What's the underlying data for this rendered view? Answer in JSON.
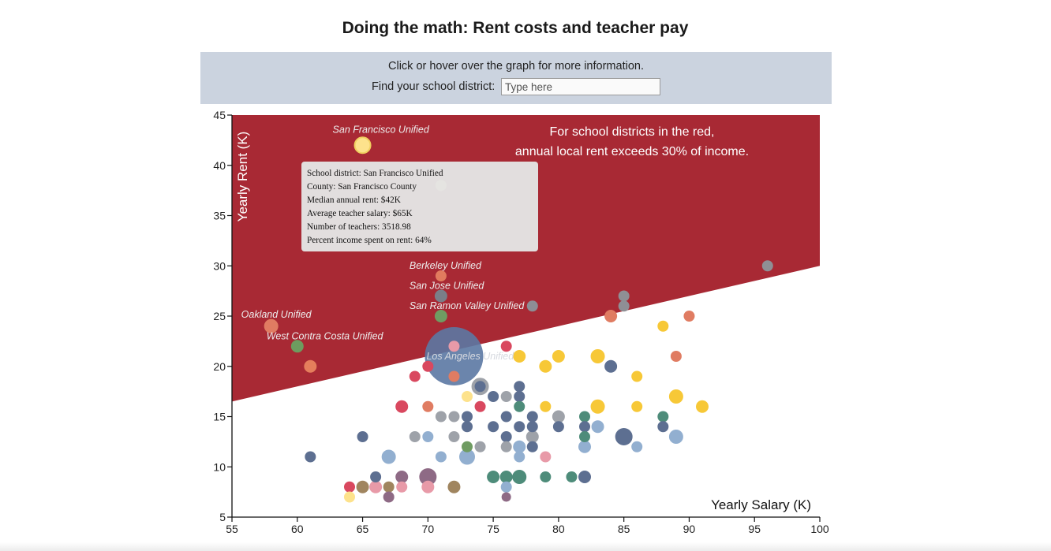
{
  "header": {
    "title": "Doing the math: Rent costs and teacher pay"
  },
  "controls": {
    "instructions": "Click or hover over the graph for more information.",
    "find_label": "Find your school district:",
    "search_placeholder": "Type here"
  },
  "tooltip": {
    "district": "School district: San Francisco Unified",
    "county": "County: San Francisco County",
    "rent": "Median annual rent: $42K",
    "salary": "Average teacher salary: $65K",
    "teachers": "Number of teachers: 3518.98",
    "percent": "Percent income spent on rent: 64%"
  },
  "colors": {
    "danger_zone": "#a82934",
    "accent_text": "#ffffff",
    "search_bar_bg": "#cbd3df"
  },
  "chart_data": {
    "type": "scatter",
    "title": "Doing the math: Rent costs and teacher pay",
    "xlabel": "Yearly Salary (K)",
    "ylabel": "Yearly Rent (K)",
    "xlim": [
      55,
      100
    ],
    "ylim": [
      5,
      45
    ],
    "xticks": [
      55,
      60,
      65,
      70,
      75,
      80,
      85,
      90,
      95,
      100
    ],
    "yticks": [
      5,
      10,
      15,
      20,
      25,
      30,
      35,
      40,
      45
    ],
    "threshold": {
      "description": "annual rent = 30% of income",
      "fraction": 0.3
    },
    "annotation": [
      "For school districts in the red,",
      "annual local rent exceeds 30% of income."
    ],
    "labeled_districts": [
      {
        "name": "San Francisco Unified",
        "x": 65,
        "y": 42
      },
      {
        "name": "Berkeley Unified",
        "x": 71,
        "y": 29
      },
      {
        "name": "San Jose Unified",
        "x": 71,
        "y": 27
      },
      {
        "name": "San Ramon Valley Unified",
        "x": 71,
        "y": 25
      },
      {
        "name": "Oakland Unified",
        "x": 58,
        "y": 24
      },
      {
        "name": "West Contra Costa Unified",
        "x": 60,
        "y": 22
      },
      {
        "name": "Los Angeles Unified",
        "x": 72,
        "y": 21
      }
    ],
    "points": [
      {
        "x": 72,
        "y": 21,
        "r": 37,
        "c": "#5b78a3",
        "o": 0.9
      },
      {
        "x": 65,
        "y": 42,
        "r": 10,
        "c": "#fde28c",
        "s": "#f0d060"
      },
      {
        "x": 71,
        "y": 38,
        "r": 7,
        "c": "#fde28c"
      },
      {
        "x": 71,
        "y": 29,
        "r": 7,
        "c": "#e17b5e"
      },
      {
        "x": 71,
        "y": 27,
        "r": 8,
        "c": "#7a7e88"
      },
      {
        "x": 71,
        "y": 25,
        "r": 8,
        "c": "#6f9c62"
      },
      {
        "x": 58,
        "y": 24,
        "r": 9,
        "c": "#e07c62"
      },
      {
        "x": 60,
        "y": 22,
        "r": 8,
        "c": "#6d9c5f"
      },
      {
        "x": 61,
        "y": 20,
        "r": 8,
        "c": "#e57e5c"
      },
      {
        "x": 72,
        "y": 22,
        "r": 7,
        "c": "#e89aa8"
      },
      {
        "x": 72,
        "y": 19,
        "r": 7,
        "c": "#e07c62"
      },
      {
        "x": 96,
        "y": 30,
        "r": 7,
        "c": "#8f8f95"
      },
      {
        "x": 78,
        "y": 26,
        "r": 7,
        "c": "#8d8e95"
      },
      {
        "x": 85,
        "y": 27,
        "r": 7,
        "c": "#8f8f95"
      },
      {
        "x": 85,
        "y": 26,
        "r": 7,
        "c": "#8f8f95"
      },
      {
        "x": 84,
        "y": 25,
        "r": 8,
        "c": "#e07c62"
      },
      {
        "x": 90,
        "y": 25,
        "r": 7,
        "c": "#e07c62"
      },
      {
        "x": 88,
        "y": 24,
        "r": 7,
        "c": "#f7c837"
      },
      {
        "x": 76,
        "y": 22,
        "r": 7,
        "c": "#d9485f"
      },
      {
        "x": 77,
        "y": 21,
        "r": 8,
        "c": "#f7c837"
      },
      {
        "x": 80,
        "y": 21,
        "r": 8,
        "c": "#f7c837"
      },
      {
        "x": 83,
        "y": 21,
        "r": 9,
        "c": "#f7c837"
      },
      {
        "x": 89,
        "y": 21,
        "r": 7,
        "c": "#e07c62"
      },
      {
        "x": 79,
        "y": 20,
        "r": 8,
        "c": "#f7c837"
      },
      {
        "x": 84,
        "y": 20,
        "r": 8,
        "c": "#5d6f91"
      },
      {
        "x": 70,
        "y": 20,
        "r": 7,
        "c": "#d9485f"
      },
      {
        "x": 69,
        "y": 19,
        "r": 7,
        "c": "#d9485f"
      },
      {
        "x": 86,
        "y": 19,
        "r": 7,
        "c": "#f7c837"
      },
      {
        "x": 74,
        "y": 18,
        "r": 12,
        "c": "#9ea2a9",
        "s": "#ffffff"
      },
      {
        "x": 74,
        "y": 18,
        "r": 7,
        "c": "#5d6f91"
      },
      {
        "x": 77,
        "y": 18,
        "r": 7,
        "c": "#5d6f91"
      },
      {
        "x": 73,
        "y": 17,
        "r": 7,
        "c": "#fde28c"
      },
      {
        "x": 75,
        "y": 17,
        "r": 7,
        "c": "#5d6f91"
      },
      {
        "x": 76,
        "y": 17,
        "r": 7,
        "c": "#9ea2a9"
      },
      {
        "x": 77,
        "y": 17,
        "r": 7,
        "c": "#5d6f91"
      },
      {
        "x": 89,
        "y": 17,
        "r": 9,
        "c": "#f7c837"
      },
      {
        "x": 68,
        "y": 16,
        "r": 8,
        "c": "#d9485f"
      },
      {
        "x": 70,
        "y": 16,
        "r": 7,
        "c": "#e07c62"
      },
      {
        "x": 74,
        "y": 16,
        "r": 7,
        "c": "#d9485f"
      },
      {
        "x": 77,
        "y": 16,
        "r": 7,
        "c": "#4e8c7a"
      },
      {
        "x": 79,
        "y": 16,
        "r": 7,
        "c": "#f7c837"
      },
      {
        "x": 83,
        "y": 16,
        "r": 9,
        "c": "#f7c837"
      },
      {
        "x": 86,
        "y": 16,
        "r": 7,
        "c": "#f7c837"
      },
      {
        "x": 91,
        "y": 16,
        "r": 8,
        "c": "#f7c837"
      },
      {
        "x": 71,
        "y": 15,
        "r": 7,
        "c": "#9ea2a9"
      },
      {
        "x": 72,
        "y": 15,
        "r": 7,
        "c": "#9ea2a9"
      },
      {
        "x": 73,
        "y": 15,
        "r": 7,
        "c": "#5d6f91"
      },
      {
        "x": 76,
        "y": 15,
        "r": 7,
        "c": "#5d6f91"
      },
      {
        "x": 78,
        "y": 15,
        "r": 7,
        "c": "#5d6f91"
      },
      {
        "x": 80,
        "y": 15,
        "r": 8,
        "c": "#9ea2a9"
      },
      {
        "x": 82,
        "y": 15,
        "r": 7,
        "c": "#4e8c7a"
      },
      {
        "x": 88,
        "y": 15,
        "r": 7,
        "c": "#4e8c7a"
      },
      {
        "x": 73,
        "y": 14,
        "r": 7,
        "c": "#5d6f91"
      },
      {
        "x": 75,
        "y": 14,
        "r": 7,
        "c": "#5d6f91"
      },
      {
        "x": 77,
        "y": 14,
        "r": 7,
        "c": "#5d6f91"
      },
      {
        "x": 78,
        "y": 14,
        "r": 7,
        "c": "#5d6f91"
      },
      {
        "x": 80,
        "y": 14,
        "r": 7,
        "c": "#5d6f91"
      },
      {
        "x": 82,
        "y": 14,
        "r": 7,
        "c": "#5d6f91"
      },
      {
        "x": 83,
        "y": 14,
        "r": 8,
        "c": "#92afd0"
      },
      {
        "x": 88,
        "y": 14,
        "r": 7,
        "c": "#5d6f91"
      },
      {
        "x": 65,
        "y": 13,
        "r": 7,
        "c": "#5d6f91"
      },
      {
        "x": 69,
        "y": 13,
        "r": 7,
        "c": "#9ea2a9"
      },
      {
        "x": 70,
        "y": 13,
        "r": 7,
        "c": "#92afd0"
      },
      {
        "x": 72,
        "y": 13,
        "r": 7,
        "c": "#9ea2a9"
      },
      {
        "x": 76,
        "y": 13,
        "r": 7,
        "c": "#5d6f91"
      },
      {
        "x": 78,
        "y": 13,
        "r": 8,
        "c": "#9ea2a9"
      },
      {
        "x": 82,
        "y": 13,
        "r": 7,
        "c": "#4e8c7a"
      },
      {
        "x": 85,
        "y": 13,
        "r": 11,
        "c": "#5d6f91"
      },
      {
        "x": 89,
        "y": 13,
        "r": 9,
        "c": "#92afd0"
      },
      {
        "x": 73,
        "y": 12,
        "r": 7,
        "c": "#6f9c62"
      },
      {
        "x": 74,
        "y": 12,
        "r": 7,
        "c": "#9ea2a9"
      },
      {
        "x": 76,
        "y": 12,
        "r": 7,
        "c": "#9ea2a9"
      },
      {
        "x": 77,
        "y": 12,
        "r": 8,
        "c": "#92afd0"
      },
      {
        "x": 78,
        "y": 12,
        "r": 7,
        "c": "#5d6f91"
      },
      {
        "x": 82,
        "y": 12,
        "r": 8,
        "c": "#92afd0"
      },
      {
        "x": 86,
        "y": 12,
        "r": 7,
        "c": "#92afd0"
      },
      {
        "x": 61,
        "y": 11,
        "r": 7,
        "c": "#5d6f91"
      },
      {
        "x": 67,
        "y": 11,
        "r": 9,
        "c": "#92afd0"
      },
      {
        "x": 71,
        "y": 11,
        "r": 7,
        "c": "#92afd0"
      },
      {
        "x": 73,
        "y": 11,
        "r": 10,
        "c": "#92afd0"
      },
      {
        "x": 77,
        "y": 11,
        "r": 7,
        "c": "#92afd0"
      },
      {
        "x": 79,
        "y": 11,
        "r": 7,
        "c": "#e89aa8"
      },
      {
        "x": 66,
        "y": 9,
        "r": 7,
        "c": "#5d6f91"
      },
      {
        "x": 68,
        "y": 9,
        "r": 8,
        "c": "#8e6a85"
      },
      {
        "x": 70,
        "y": 9,
        "r": 11,
        "c": "#8e6a85"
      },
      {
        "x": 75,
        "y": 9,
        "r": 8,
        "c": "#4e8c7a"
      },
      {
        "x": 76,
        "y": 9,
        "r": 8,
        "c": "#4e8c7a"
      },
      {
        "x": 77,
        "y": 9,
        "r": 9,
        "c": "#4e8c7a"
      },
      {
        "x": 79,
        "y": 9,
        "r": 7,
        "c": "#4e8c7a"
      },
      {
        "x": 81,
        "y": 9,
        "r": 7,
        "c": "#4e8c7a"
      },
      {
        "x": 82,
        "y": 9,
        "r": 8,
        "c": "#5d6f91"
      },
      {
        "x": 64,
        "y": 8,
        "r": 7,
        "c": "#d9485f"
      },
      {
        "x": 65,
        "y": 8,
        "r": 8,
        "c": "#a0855f"
      },
      {
        "x": 66,
        "y": 8,
        "r": 8,
        "c": "#e89aa8"
      },
      {
        "x": 67,
        "y": 8,
        "r": 7,
        "c": "#a0855f"
      },
      {
        "x": 68,
        "y": 8,
        "r": 7,
        "c": "#e89aa8"
      },
      {
        "x": 70,
        "y": 8,
        "r": 8,
        "c": "#e89aa8"
      },
      {
        "x": 72,
        "y": 8,
        "r": 8,
        "c": "#a0855f"
      },
      {
        "x": 76,
        "y": 8,
        "r": 7,
        "c": "#92afd0"
      },
      {
        "x": 64,
        "y": 7,
        "r": 7,
        "c": "#fde28c"
      },
      {
        "x": 67,
        "y": 7,
        "r": 7,
        "c": "#8e6a85"
      },
      {
        "x": 76,
        "y": 7,
        "r": 6,
        "c": "#8e6a85"
      }
    ]
  }
}
